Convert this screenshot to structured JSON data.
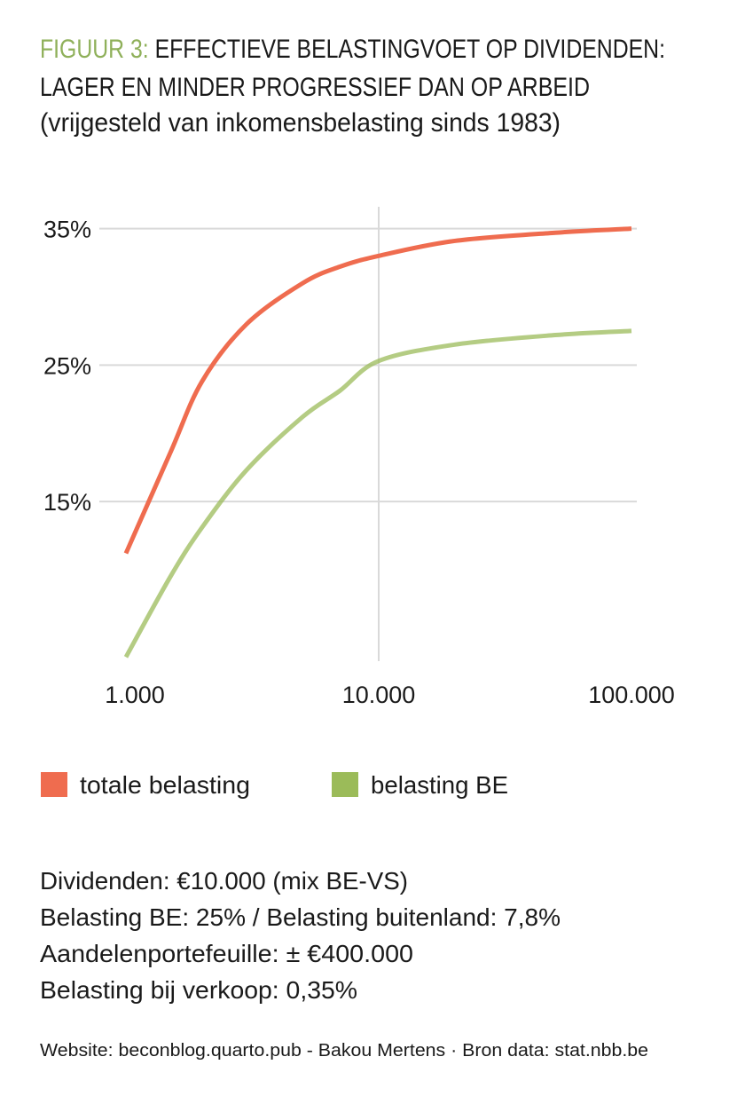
{
  "chart_data": {
    "type": "line",
    "figure_label": "FIGUUR 3:",
    "title": [
      "EFFECTIEVE BELASTINGVOET OP DIVIDENDEN:",
      "LAGER EN MINDER PROGRESSIEF DAN OP ARBEID"
    ],
    "subtitle": "(vrijgesteld van inkomensbelasting sinds 1983)",
    "x": [
      1000,
      1500,
      2000,
      3000,
      5000,
      7000,
      10000,
      20000,
      50000,
      100000
    ],
    "series": [
      {
        "name": "totale belasting",
        "color": "#ef6c4f",
        "values": [
          11.2,
          18.6,
          23.8,
          28.0,
          31.0,
          32.2,
          33.0,
          34.1,
          34.7,
          35.0
        ]
      },
      {
        "name": "belasting BE",
        "color": "#9bbb59",
        "values": [
          3.6,
          9.5,
          13.1,
          17.3,
          21.2,
          23.1,
          25.3,
          26.5,
          27.2,
          27.5
        ]
      }
    ],
    "xscale": "log",
    "xlim": [
      1000,
      100000
    ],
    "xticks": [
      {
        "value": 1000,
        "label": "1.000"
      },
      {
        "value": 10000,
        "label": "10.000"
      },
      {
        "value": 100000,
        "label": "100.000"
      }
    ],
    "xgrid": [
      {
        "value": 10000
      }
    ],
    "ylim": [
      3.3,
      36.6
    ],
    "yticks": [
      {
        "value": 15,
        "label": "15%"
      },
      {
        "value": 25,
        "label": "25%"
      },
      {
        "value": 35,
        "label": "35%"
      }
    ],
    "grid": true,
    "notes": [
      "Dividenden: €10.000 (mix BE-VS)",
      "Belasting BE: 25% / Belasting buitenland: 7,8%",
      "Aandelenportefeuille: ± €400.000",
      "Belasting bij verkoop: 0,35%"
    ],
    "source": "Website: beconblog.quarto.pub - Bakou Mertens · Bron data: stat.nbb.be"
  }
}
